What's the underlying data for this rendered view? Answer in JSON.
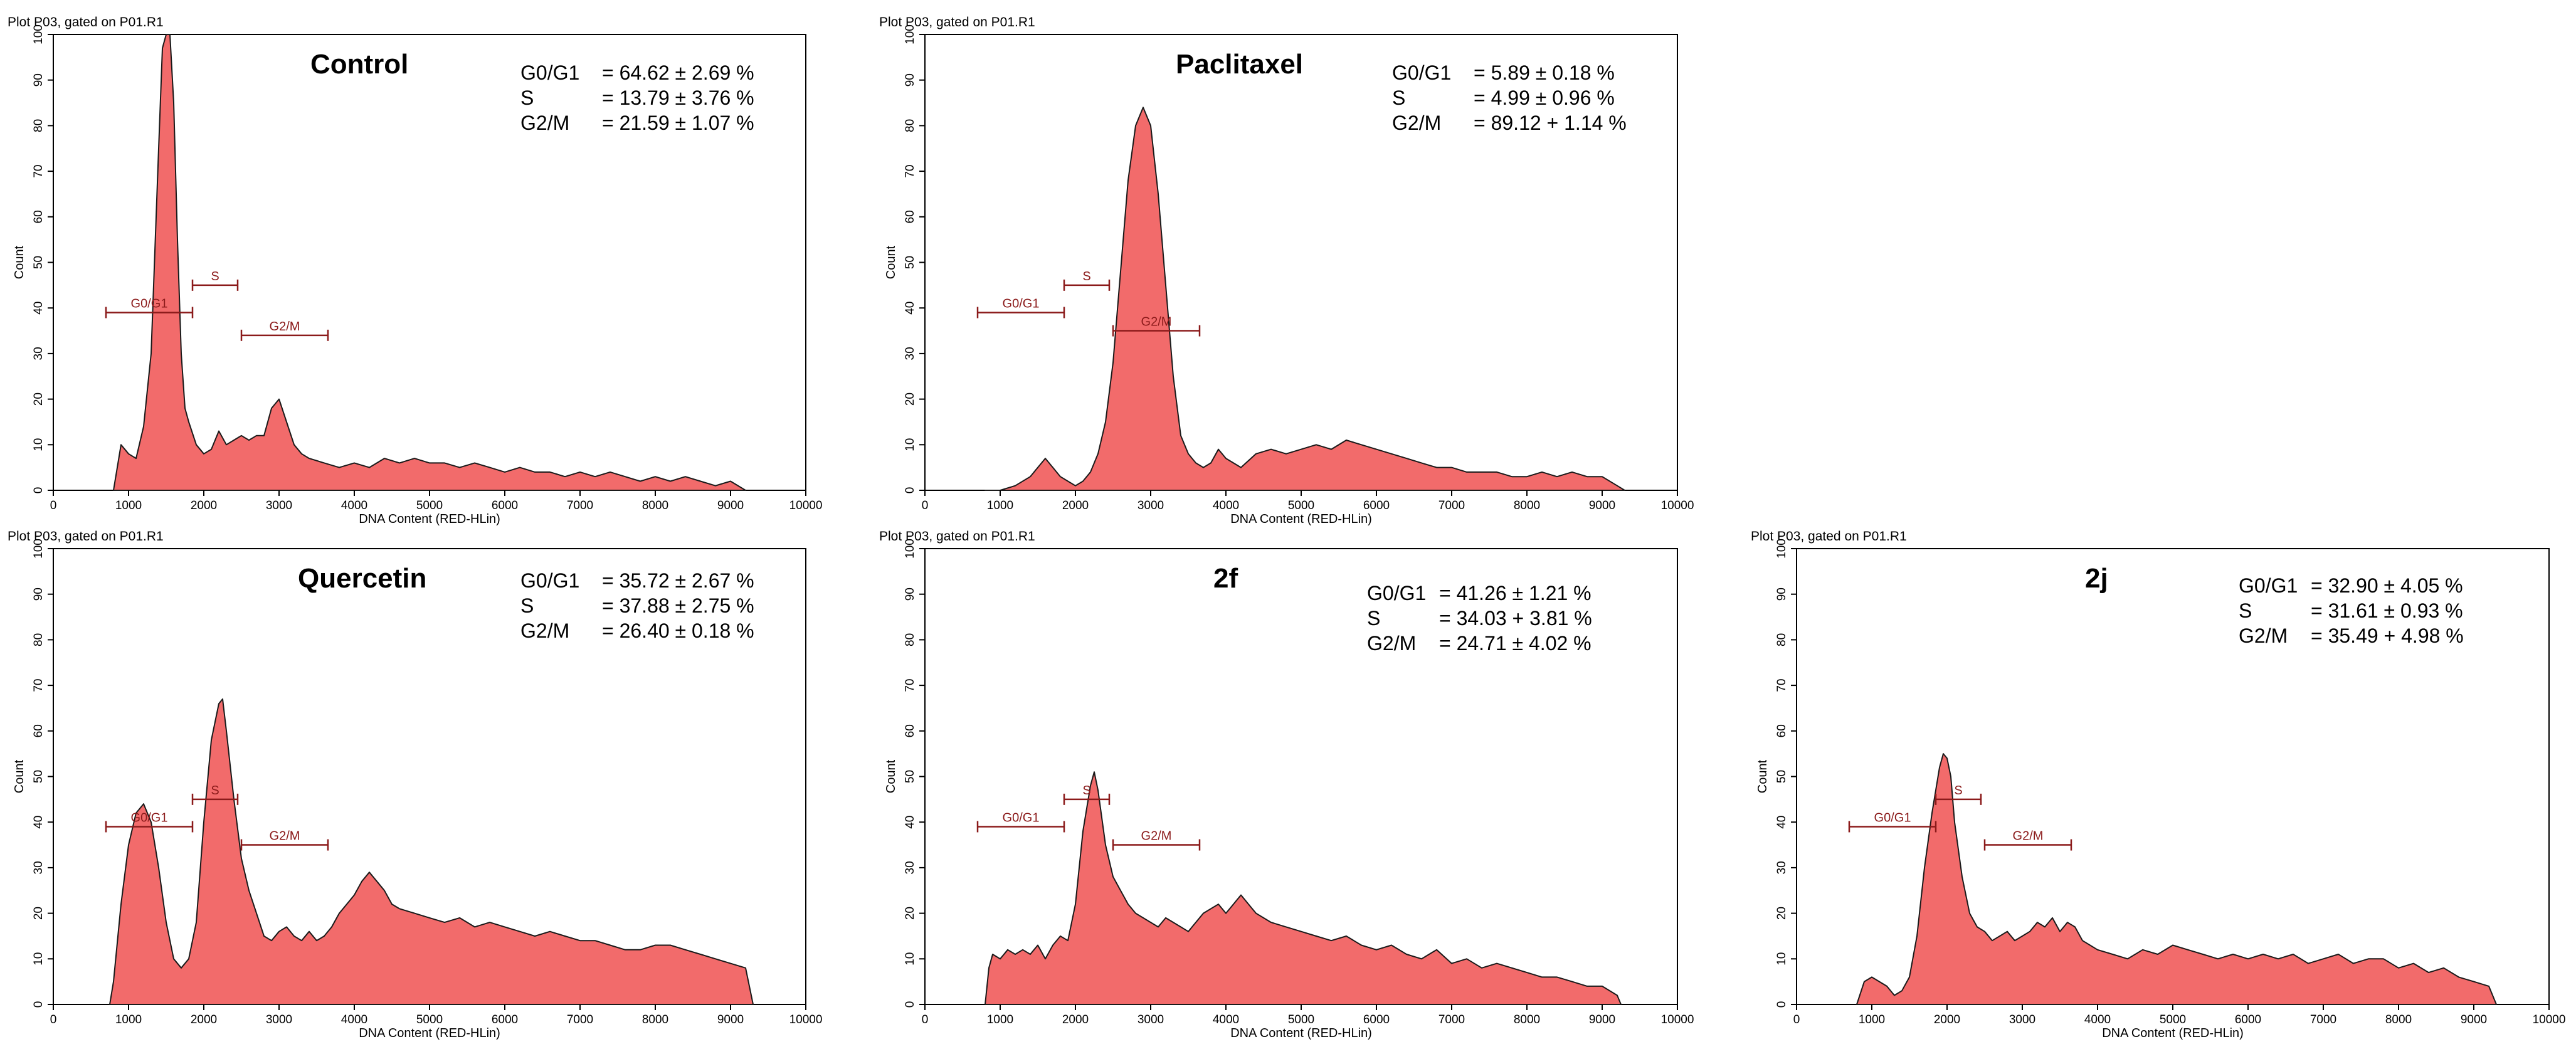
{
  "chart_data": [
    {
      "type": "area",
      "plot_header": "Plot P03, gated on P01.R1",
      "title": "Control",
      "xlabel": "DNA Content (RED-HLin)",
      "ylabel": "Count",
      "xlim": [
        0,
        10000
      ],
      "ylim": [
        0,
        100
      ],
      "xticks": [
        "0",
        "1000",
        "2000",
        "3000",
        "4000",
        "5000",
        "6000",
        "7000",
        "8000",
        "9000",
        "10000"
      ],
      "yticks": [
        "0",
        "10",
        "20",
        "30",
        "40",
        "50",
        "60",
        "70",
        "80",
        "90",
        "100"
      ],
      "stats": [
        {
          "label": "G0/G1",
          "value": "= 64.62 ± 2.69 %"
        },
        {
          "label": "S",
          "value": "= 13.79 ± 3.76 %"
        },
        {
          "label": "G2/M",
          "value": "= 21.59 ± 1.07 %"
        }
      ],
      "gates": [
        {
          "label": "G0/G1",
          "x1": 700,
          "x2": 1850,
          "y": 39
        },
        {
          "label": "S",
          "x1": 1850,
          "x2": 2450,
          "y": 45
        },
        {
          "label": "G2/M",
          "x1": 2500,
          "x2": 3650,
          "y": 34
        }
      ],
      "series": {
        "name": "Count",
        "x": [
          800,
          900,
          1000,
          1100,
          1200,
          1300,
          1400,
          1450,
          1500,
          1550,
          1600,
          1650,
          1700,
          1750,
          1800,
          1900,
          2000,
          2100,
          2200,
          2300,
          2400,
          2500,
          2600,
          2700,
          2800,
          2900,
          3000,
          3100,
          3200,
          3300,
          3400,
          3600,
          3800,
          4000,
          4200,
          4400,
          4600,
          4800,
          5000,
          5200,
          5400,
          5600,
          5800,
          6000,
          6200,
          6400,
          6600,
          6800,
          7000,
          7200,
          7400,
          7600,
          7800,
          8000,
          8200,
          8400,
          8600,
          8800,
          9000,
          9200
        ],
        "y": [
          0,
          10,
          8,
          7,
          14,
          30,
          75,
          97,
          100,
          100,
          85,
          55,
          30,
          18,
          15,
          10,
          8,
          9,
          13,
          10,
          11,
          12,
          11,
          12,
          12,
          18,
          20,
          15,
          10,
          8,
          7,
          6,
          5,
          6,
          5,
          7,
          6,
          7,
          6,
          6,
          5,
          6,
          5,
          4,
          5,
          4,
          4,
          3,
          4,
          3,
          4,
          3,
          2,
          3,
          2,
          3,
          2,
          1,
          2,
          0
        ]
      }
    },
    {
      "type": "area",
      "plot_header": "Plot P03, gated on P01.R1",
      "title": "Paclitaxel",
      "xlabel": "DNA Content (RED-HLin)",
      "ylabel": "Count",
      "xlim": [
        0,
        10000
      ],
      "ylim": [
        0,
        100
      ],
      "xticks": [
        "0",
        "1000",
        "2000",
        "3000",
        "4000",
        "5000",
        "6000",
        "7000",
        "8000",
        "9000",
        "10000"
      ],
      "yticks": [
        "0",
        "10",
        "20",
        "30",
        "40",
        "50",
        "60",
        "70",
        "80",
        "90",
        "100"
      ],
      "stats": [
        {
          "label": "G0/G1",
          "value": "= 5.89 ± 0.18 %"
        },
        {
          "label": "S",
          "value": "= 4.99 ± 0.96 %"
        },
        {
          "label": "G2/M",
          "value": "= 89.12 + 1.14 %"
        }
      ],
      "gates": [
        {
          "label": "G0/G1",
          "x1": 700,
          "x2": 1850,
          "y": 39
        },
        {
          "label": "S",
          "x1": 1850,
          "x2": 2450,
          "y": 45
        },
        {
          "label": "G2/M",
          "x1": 2500,
          "x2": 3650,
          "y": 35
        }
      ],
      "series": {
        "name": "Count",
        "x": [
          800,
          1000,
          1200,
          1400,
          1500,
          1600,
          1700,
          1800,
          1900,
          2000,
          2100,
          2200,
          2300,
          2400,
          2500,
          2600,
          2700,
          2800,
          2900,
          3000,
          3100,
          3200,
          3300,
          3400,
          3500,
          3600,
          3700,
          3800,
          3900,
          4000,
          4200,
          4400,
          4600,
          4800,
          5000,
          5200,
          5400,
          5600,
          5800,
          6000,
          6200,
          6400,
          6600,
          6800,
          7000,
          7200,
          7400,
          7600,
          7800,
          8000,
          8200,
          8400,
          8600,
          8800,
          9000,
          9200,
          9300
        ],
        "y": [
          0,
          0,
          1,
          3,
          5,
          7,
          5,
          3,
          2,
          1,
          2,
          4,
          8,
          15,
          28,
          48,
          68,
          80,
          84,
          80,
          65,
          45,
          25,
          12,
          8,
          6,
          5,
          6,
          9,
          7,
          5,
          8,
          9,
          8,
          9,
          10,
          9,
          11,
          10,
          9,
          8,
          7,
          6,
          5,
          5,
          4,
          4,
          4,
          3,
          3,
          4,
          3,
          4,
          3,
          3,
          1,
          0
        ]
      }
    },
    {
      "type": "area",
      "plot_header": "Plot P03, gated on P01.R1",
      "title": "Quercetin",
      "xlabel": "DNA Content (RED-HLin)",
      "ylabel": "Count",
      "xlim": [
        0,
        10000
      ],
      "ylim": [
        0,
        100
      ],
      "xticks": [
        "0",
        "1000",
        "2000",
        "3000",
        "4000",
        "5000",
        "6000",
        "7000",
        "8000",
        "9000",
        "10000"
      ],
      "yticks": [
        "0",
        "10",
        "20",
        "30",
        "40",
        "50",
        "60",
        "70",
        "80",
        "90",
        "100"
      ],
      "stats": [
        {
          "label": "G0/G1",
          "value": "= 35.72 ± 2.67 %"
        },
        {
          "label": "S",
          "value": "= 37.88 ± 2.75 %"
        },
        {
          "label": "G2/M",
          "value": "= 26.40 ± 0.18 %"
        }
      ],
      "gates": [
        {
          "label": "G0/G1",
          "x1": 700,
          "x2": 1850,
          "y": 39
        },
        {
          "label": "S",
          "x1": 1850,
          "x2": 2450,
          "y": 45
        },
        {
          "label": "G2/M",
          "x1": 2500,
          "x2": 3650,
          "y": 35
        }
      ],
      "series": {
        "name": "Count",
        "x": [
          750,
          800,
          900,
          1000,
          1100,
          1200,
          1300,
          1400,
          1500,
          1600,
          1700,
          1800,
          1900,
          2000,
          2100,
          2200,
          2250,
          2300,
          2400,
          2500,
          2600,
          2700,
          2800,
          2900,
          3000,
          3100,
          3200,
          3300,
          3400,
          3500,
          3600,
          3700,
          3800,
          3900,
          4000,
          4100,
          4200,
          4300,
          4400,
          4500,
          4600,
          4800,
          5000,
          5200,
          5400,
          5600,
          5800,
          6000,
          6200,
          6400,
          6600,
          6800,
          7000,
          7200,
          7400,
          7600,
          7800,
          8000,
          8200,
          8400,
          8600,
          8800,
          9000,
          9200,
          9300
        ],
        "y": [
          0,
          5,
          22,
          35,
          42,
          44,
          40,
          30,
          18,
          10,
          8,
          10,
          18,
          40,
          58,
          66,
          67,
          60,
          45,
          32,
          25,
          20,
          15,
          14,
          16,
          17,
          15,
          14,
          16,
          14,
          15,
          17,
          20,
          22,
          24,
          27,
          29,
          27,
          25,
          22,
          21,
          20,
          19,
          18,
          19,
          17,
          18,
          17,
          16,
          15,
          16,
          15,
          14,
          14,
          13,
          12,
          12,
          13,
          13,
          12,
          11,
          10,
          9,
          8,
          0
        ]
      }
    },
    {
      "type": "area",
      "plot_header": "Plot P03, gated on P01.R1",
      "title": "2f",
      "xlabel": "DNA Content (RED-HLin)",
      "ylabel": "Count",
      "xlim": [
        0,
        10000
      ],
      "ylim": [
        0,
        100
      ],
      "xticks": [
        "0",
        "1000",
        "2000",
        "3000",
        "4000",
        "5000",
        "6000",
        "7000",
        "8000",
        "9000",
        "10000"
      ],
      "yticks": [
        "0",
        "10",
        "20",
        "30",
        "40",
        "50",
        "60",
        "70",
        "80",
        "90",
        "100"
      ],
      "stats": [
        {
          "label": "G0/G1",
          "value": "= 41.26 ± 1.21 %"
        },
        {
          "label": "S",
          "value": "= 34.03 + 3.81 %"
        },
        {
          "label": "G2/M",
          "value": "= 24.71 ± 4.02 %"
        }
      ],
      "gates": [
        {
          "label": "G0/G1",
          "x1": 700,
          "x2": 1850,
          "y": 39
        },
        {
          "label": "S",
          "x1": 1850,
          "x2": 2450,
          "y": 45
        },
        {
          "label": "G2/M",
          "x1": 2500,
          "x2": 3650,
          "y": 35
        }
      ],
      "series": {
        "name": "Count",
        "x": [
          800,
          850,
          900,
          1000,
          1100,
          1200,
          1300,
          1400,
          1500,
          1600,
          1700,
          1800,
          1900,
          2000,
          2100,
          2200,
          2250,
          2300,
          2400,
          2500,
          2600,
          2700,
          2800,
          2900,
          3000,
          3100,
          3200,
          3300,
          3400,
          3500,
          3600,
          3700,
          3800,
          3900,
          4000,
          4100,
          4200,
          4300,
          4400,
          4600,
          4800,
          5000,
          5200,
          5400,
          5600,
          5800,
          6000,
          6200,
          6400,
          6600,
          6800,
          7000,
          7200,
          7400,
          7600,
          7800,
          8000,
          8200,
          8400,
          8600,
          8800,
          9000,
          9200,
          9250
        ],
        "y": [
          0,
          8,
          11,
          10,
          12,
          11,
          12,
          11,
          13,
          10,
          13,
          15,
          14,
          22,
          38,
          48,
          51,
          47,
          35,
          28,
          25,
          22,
          20,
          19,
          18,
          17,
          19,
          18,
          17,
          16,
          18,
          20,
          21,
          22,
          20,
          22,
          24,
          22,
          20,
          18,
          17,
          16,
          15,
          14,
          15,
          13,
          12,
          13,
          11,
          10,
          12,
          9,
          10,
          8,
          9,
          8,
          7,
          6,
          6,
          5,
          4,
          4,
          2,
          0
        ]
      }
    },
    {
      "type": "area",
      "plot_header": "Plot P03, gated on P01.R1",
      "title": "2j",
      "xlabel": "DNA Content (RED-HLin)",
      "ylabel": "Count",
      "xlim": [
        0,
        10000
      ],
      "ylim": [
        0,
        100
      ],
      "xticks": [
        "0",
        "1000",
        "2000",
        "3000",
        "4000",
        "5000",
        "6000",
        "7000",
        "8000",
        "9000",
        "10000"
      ],
      "yticks": [
        "0",
        "10",
        "20",
        "30",
        "40",
        "50",
        "60",
        "70",
        "80",
        "90",
        "100"
      ],
      "stats": [
        {
          "label": "G0/G1",
          "value": "= 32.90 ± 4.05 %"
        },
        {
          "label": "S",
          "value": "= 31.61 ± 0.93 %"
        },
        {
          "label": "G2/M",
          "value": "= 35.49 + 4.98 %"
        }
      ],
      "gates": [
        {
          "label": "G0/G1",
          "x1": 700,
          "x2": 1850,
          "y": 39
        },
        {
          "label": "S",
          "x1": 1850,
          "x2": 2450,
          "y": 45
        },
        {
          "label": "G2/M",
          "x1": 2500,
          "x2": 3650,
          "y": 35
        }
      ],
      "series": {
        "name": "Count",
        "x": [
          800,
          900,
          1000,
          1100,
          1200,
          1300,
          1400,
          1500,
          1600,
          1700,
          1800,
          1900,
          1950,
          2000,
          2050,
          2100,
          2200,
          2300,
          2400,
          2500,
          2600,
          2700,
          2800,
          2900,
          3000,
          3100,
          3200,
          3300,
          3400,
          3500,
          3600,
          3700,
          3800,
          3900,
          4000,
          4200,
          4400,
          4600,
          4800,
          5000,
          5200,
          5400,
          5600,
          5800,
          6000,
          6200,
          6400,
          6600,
          6800,
          7000,
          7200,
          7400,
          7600,
          7800,
          8000,
          8200,
          8400,
          8600,
          8800,
          9000,
          9200,
          9300
        ],
        "y": [
          0,
          5,
          6,
          5,
          4,
          2,
          3,
          6,
          15,
          30,
          42,
          52,
          55,
          54,
          50,
          40,
          28,
          20,
          17,
          16,
          14,
          15,
          16,
          14,
          15,
          16,
          18,
          17,
          19,
          16,
          18,
          17,
          14,
          13,
          12,
          11,
          10,
          12,
          11,
          13,
          12,
          11,
          10,
          11,
          10,
          11,
          10,
          11,
          9,
          10,
          11,
          9,
          10,
          10,
          8,
          9,
          7,
          8,
          6,
          5,
          4,
          0
        ]
      }
    }
  ]
}
